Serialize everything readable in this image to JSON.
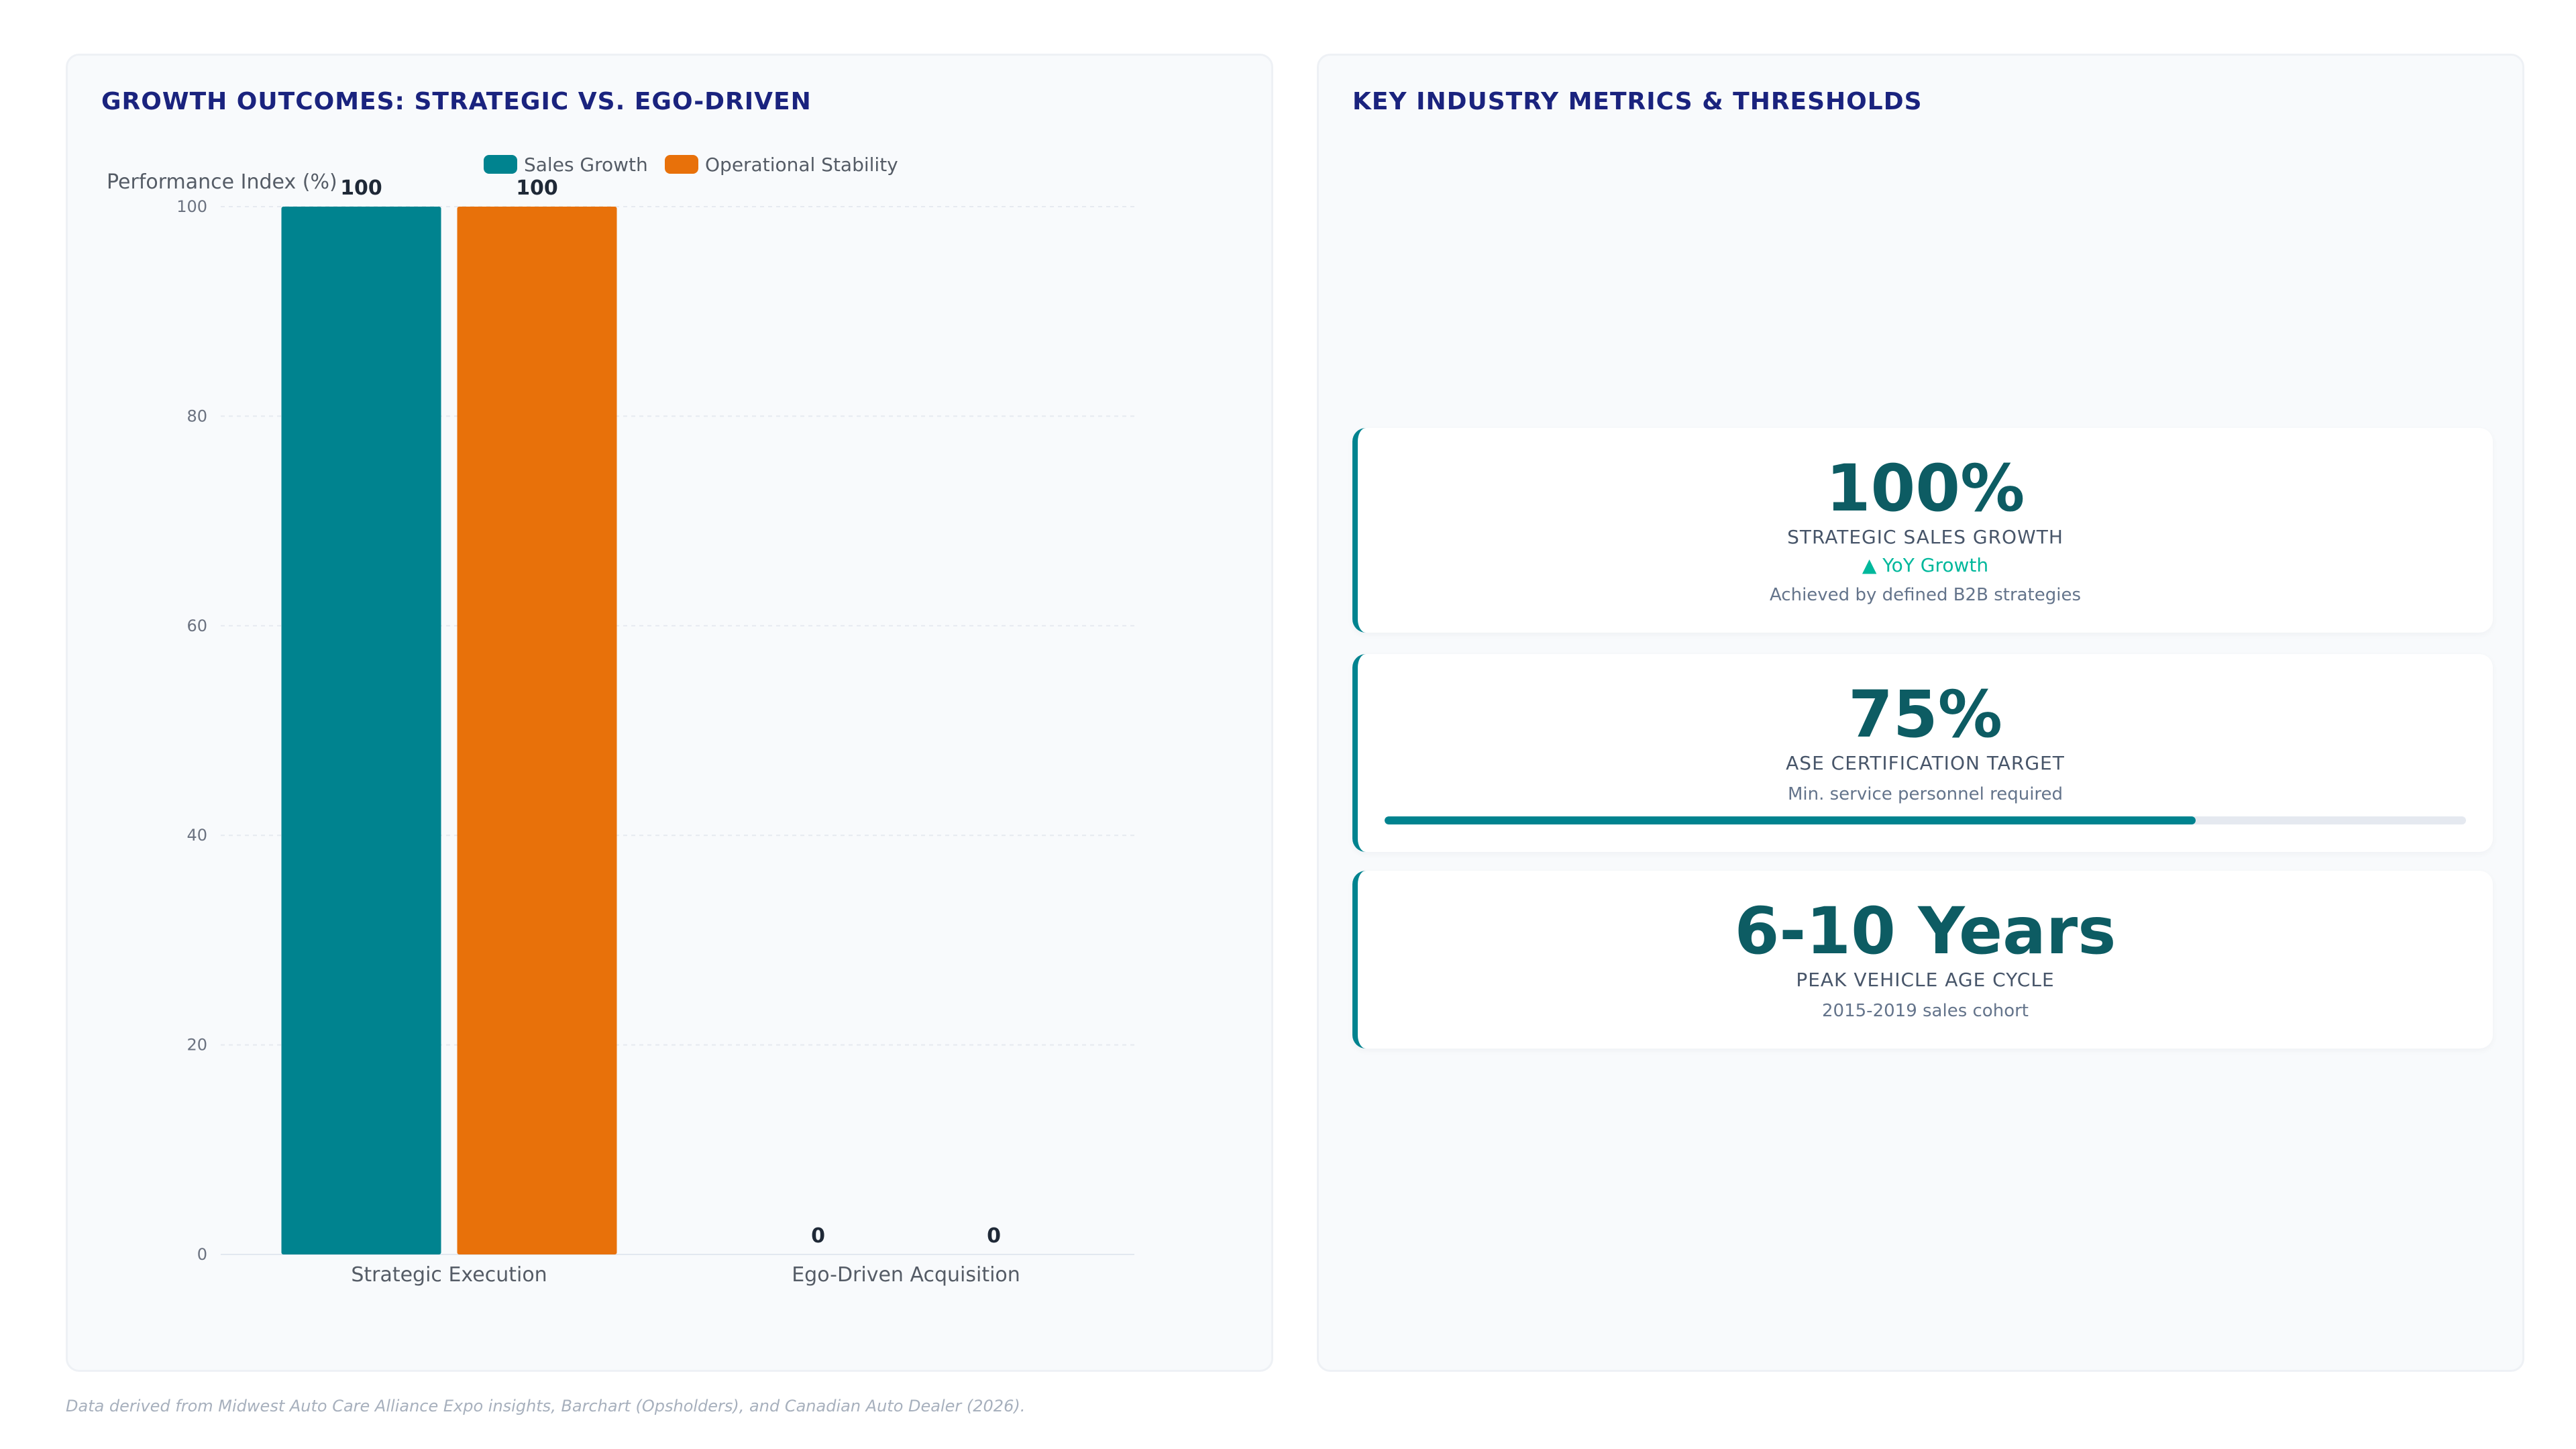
{
  "left_panel": {
    "title": "GROWTH OUTCOMES: STRATEGIC VS. EGO-DRIVEN"
  },
  "chart_data": {
    "type": "bar",
    "categories": [
      "Strategic Execution",
      "Ego-Driven Acquisition"
    ],
    "series": [
      {
        "name": "Sales Growth",
        "values": [
          100,
          0
        ],
        "color": "#00838f"
      },
      {
        "name": "Operational Stability",
        "values": [
          100,
          0
        ],
        "color": "#e8710a"
      }
    ],
    "ylabel": "Performance Index (%)",
    "xlabel": "",
    "ylim": [
      0,
      100
    ],
    "yticks": [
      0,
      20,
      40,
      60,
      80,
      100
    ],
    "grid": true,
    "legend": "top-center",
    "data_labels": true
  },
  "right_panel": {
    "title": "KEY INDUSTRY METRICS & THRESHOLDS",
    "metrics": [
      {
        "value": "100%",
        "label": "STRATEGIC SALES GROWTH",
        "trend": "▲ YoY Growth",
        "note": "Achieved by defined B2B strategies"
      },
      {
        "value": "75%",
        "label": "ASE CERTIFICATION TARGET",
        "note": "Min. service personnel required",
        "progress": 0.75
      },
      {
        "value": "6-10 Years",
        "label": "PEAK VEHICLE AGE CYCLE",
        "note": "2015-2019 sales cohort"
      }
    ]
  },
  "footer": {
    "source": "Data derived from Midwest Auto Care Alliance Expo insights, Barchart (Opsholders), and Canadian Auto Dealer (2026)."
  },
  "colors": {
    "accent": "#00838f",
    "orange": "#e8710a",
    "title": "#1a237e",
    "metric_value": "#0d5c63",
    "trend_up": "#00b89c"
  }
}
